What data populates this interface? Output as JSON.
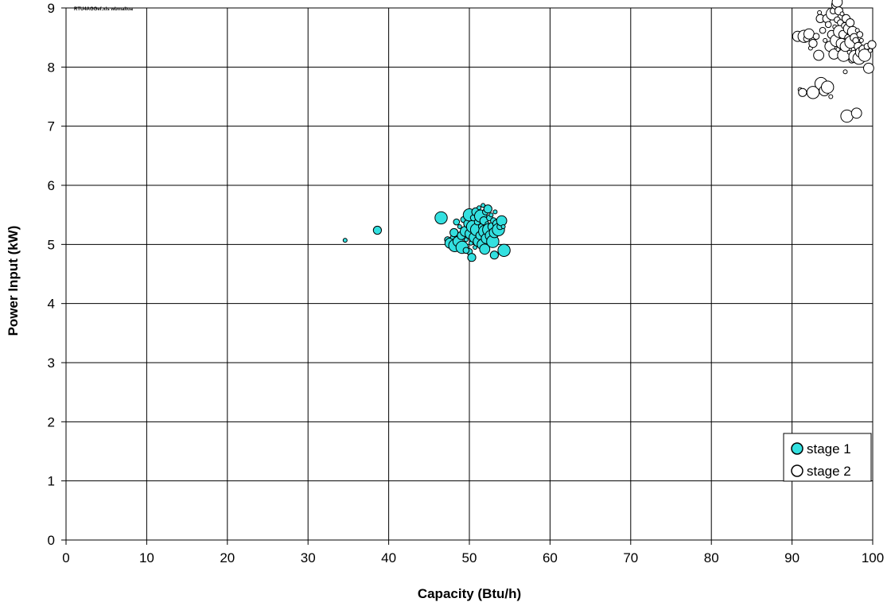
{
  "file_label": "RTU4AGGef.xls wbmaltoa",
  "chart_data": {
    "type": "scatter",
    "xlabel": "Capacity (Btu/h)",
    "ylabel": "Power Input (kW)",
    "xlim": [
      0,
      100
    ],
    "ylim": [
      0,
      9
    ],
    "x_ticks": [
      "0",
      "10",
      "20",
      "30",
      "40",
      "50",
      "60",
      "70",
      "80",
      "90",
      "100"
    ],
    "y_ticks": [
      "0",
      "1",
      "2",
      "3",
      "4",
      "5",
      "6",
      "7",
      "8",
      "9"
    ],
    "grid": true,
    "legend": "bottom-right",
    "colors": {
      "stage1_fill": "#33e0e0",
      "stage2_fill": "#ffffff",
      "marker_edge": "#000000",
      "grid": "#000000"
    },
    "series": [
      {
        "name": "stage 1",
        "points": [
          [
            34.6,
            5.07
          ],
          [
            38.6,
            5.24
          ],
          [
            46.5,
            5.45
          ],
          [
            47.3,
            5.08
          ],
          [
            47.6,
            5.02
          ],
          [
            47.9,
            5.12
          ],
          [
            48.1,
            5.2
          ],
          [
            48.2,
            4.98
          ],
          [
            48.4,
            5.38
          ],
          [
            48.6,
            5.05
          ],
          [
            48.8,
            5.3
          ],
          [
            49.0,
            5.15
          ],
          [
            49.1,
            4.95
          ],
          [
            49.3,
            5.42
          ],
          [
            49.5,
            5.22
          ],
          [
            49.6,
            5.08
          ],
          [
            49.8,
            5.35
          ],
          [
            50.0,
            5.5
          ],
          [
            50.0,
            4.88
          ],
          [
            50.1,
            5.18
          ],
          [
            50.2,
            5.02
          ],
          [
            50.3,
            4.78
          ],
          [
            50.4,
            5.3
          ],
          [
            50.5,
            5.45
          ],
          [
            50.6,
            5.12
          ],
          [
            50.7,
            4.95
          ],
          [
            50.8,
            5.55
          ],
          [
            50.9,
            5.25
          ],
          [
            51.0,
            5.38
          ],
          [
            51.1,
            5.05
          ],
          [
            51.2,
            5.62
          ],
          [
            51.3,
            5.15
          ],
          [
            51.4,
            5.48
          ],
          [
            51.5,
            5.3
          ],
          [
            51.6,
            5.0
          ],
          [
            51.7,
            5.66
          ],
          [
            51.8,
            5.4
          ],
          [
            51.9,
            5.22
          ],
          [
            52.0,
            5.55
          ],
          [
            52.1,
            5.1
          ],
          [
            52.2,
            5.35
          ],
          [
            52.3,
            5.6
          ],
          [
            52.4,
            5.25
          ],
          [
            52.5,
            5.45
          ],
          [
            52.6,
            5.15
          ],
          [
            52.7,
            5.5
          ],
          [
            52.8,
            5.3
          ],
          [
            52.9,
            5.05
          ],
          [
            53.0,
            5.4
          ],
          [
            53.1,
            5.2
          ],
          [
            53.2,
            5.55
          ],
          [
            53.4,
            5.35
          ],
          [
            53.6,
            5.25
          ],
          [
            53.8,
            5.3
          ],
          [
            54.0,
            5.4
          ],
          [
            54.2,
            5.3
          ],
          [
            53.1,
            4.82
          ],
          [
            54.3,
            4.9
          ],
          [
            49.6,
            4.9
          ],
          [
            51.9,
            4.92
          ]
        ]
      },
      {
        "name": "stage 2",
        "points": [
          [
            90.7,
            8.52
          ],
          [
            91.0,
            7.62
          ],
          [
            91.3,
            7.57
          ],
          [
            91.5,
            8.52
          ],
          [
            91.8,
            8.48
          ],
          [
            92.1,
            8.56
          ],
          [
            92.3,
            8.32
          ],
          [
            92.6,
            8.4
          ],
          [
            92.6,
            7.57
          ],
          [
            93.0,
            8.52
          ],
          [
            93.3,
            8.2
          ],
          [
            93.4,
            8.92
          ],
          [
            93.5,
            8.82
          ],
          [
            93.6,
            7.72
          ],
          [
            93.8,
            8.62
          ],
          [
            94.0,
            7.6
          ],
          [
            94.1,
            8.45
          ],
          [
            94.3,
            8.82
          ],
          [
            94.4,
            7.66
          ],
          [
            94.5,
            8.72
          ],
          [
            94.7,
            8.35
          ],
          [
            94.8,
            7.5
          ],
          [
            94.9,
            8.55
          ],
          [
            95.0,
            8.9
          ],
          [
            95.1,
            8.95
          ],
          [
            95.2,
            8.22
          ],
          [
            95.3,
            8.68
          ],
          [
            95.4,
            9.05
          ],
          [
            95.5,
            8.45
          ],
          [
            95.6,
            8.8
          ],
          [
            95.6,
            9.1
          ],
          [
            95.7,
            8.3
          ],
          [
            95.8,
            8.95
          ],
          [
            95.9,
            8.6
          ],
          [
            96.0,
            8.75
          ],
          [
            96.1,
            8.4
          ],
          [
            96.2,
            8.9
          ],
          [
            96.3,
            8.55
          ],
          [
            96.4,
            8.2
          ],
          [
            96.5,
            8.7
          ],
          [
            96.6,
            8.35
          ],
          [
            96.6,
            7.92
          ],
          [
            96.7,
            8.82
          ],
          [
            96.8,
            7.17
          ],
          [
            96.9,
            8.5
          ],
          [
            97.0,
            8.65
          ],
          [
            97.1,
            8.25
          ],
          [
            97.2,
            8.75
          ],
          [
            97.3,
            8.42
          ],
          [
            97.4,
            8.12
          ],
          [
            97.5,
            8.6
          ],
          [
            97.6,
            8.3
          ],
          [
            97.7,
            8.5
          ],
          [
            97.8,
            8.18
          ],
          [
            97.9,
            8.45
          ],
          [
            98.0,
            7.22
          ],
          [
            98.1,
            8.62
          ],
          [
            98.2,
            8.35
          ],
          [
            98.3,
            8.15
          ],
          [
            98.4,
            8.55
          ],
          [
            98.5,
            8.25
          ],
          [
            98.6,
            8.45
          ],
          [
            98.8,
            8.3
          ],
          [
            99.0,
            8.2
          ],
          [
            99.3,
            8.35
          ],
          [
            99.5,
            7.98
          ],
          [
            99.7,
            8.28
          ],
          [
            99.9,
            8.38
          ]
        ]
      }
    ]
  }
}
